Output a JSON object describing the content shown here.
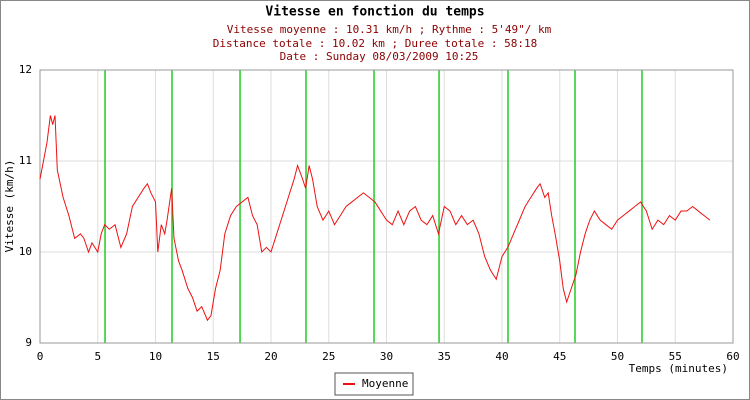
{
  "chart_data": {
    "type": "line",
    "title": "Vitesse en fonction du temps",
    "subtitle": [
      "Vitesse moyenne : 10.31 km/h ; Rythme : 5'49\"/ km",
      "Distance totale : 10.02 km ; Duree totale : 58:18",
      "Date : Sunday 08/03/2009 10:25"
    ],
    "xlabel": "Temps (minutes)",
    "ylabel": "Vitesse (km/h)",
    "xlim": [
      0,
      60
    ],
    "xticks": [
      0,
      5,
      10,
      15,
      20,
      25,
      30,
      35,
      40,
      45,
      50,
      55,
      60
    ],
    "ylim": [
      9,
      12
    ],
    "yticks": [
      9,
      10,
      11,
      12
    ],
    "grid": true,
    "legend": "bottom",
    "km_markers": [
      5.63,
      11.43,
      17.32,
      23.03,
      28.92,
      34.55,
      40.52,
      46.32,
      52.12
    ],
    "km_marker_color": "#22cc22",
    "x": [
      0,
      0.3,
      0.6,
      0.9,
      1.1,
      1.3,
      1.5,
      2,
      2.5,
      3,
      3.5,
      3.8,
      4.2,
      4.5,
      5,
      5.3,
      5.6,
      6,
      6.5,
      7,
      7.5,
      8,
      8.5,
      9,
      9.3,
      9.6,
      10,
      10.2,
      10.5,
      10.8,
      11,
      11.4,
      11.6,
      12,
      12.3,
      12.8,
      13.2,
      13.6,
      14,
      14.5,
      14.8,
      15.2,
      15.6,
      16,
      16.5,
      17,
      17.5,
      18,
      18.4,
      18.8,
      19.2,
      19.6,
      20,
      20.5,
      21,
      21.5,
      22,
      22.3,
      22.6,
      23,
      23.3,
      23.6,
      24,
      24.5,
      25,
      25.5,
      26,
      26.5,
      27,
      27.5,
      28,
      28.5,
      29,
      29.5,
      30,
      30.5,
      31,
      31.5,
      32,
      32.5,
      33,
      33.5,
      34,
      34.5,
      35,
      35.5,
      36,
      36.5,
      37,
      37.5,
      38,
      38.5,
      39,
      39.5,
      40,
      40.5,
      41,
      41.5,
      42,
      42.5,
      43,
      43.3,
      43.7,
      44,
      44.3,
      44.6,
      45,
      45.3,
      45.6,
      46,
      46.4,
      46.8,
      47.2,
      47.6,
      48,
      48.5,
      49,
      49.5,
      50,
      50.5,
      51,
      51.5,
      52,
      52.5,
      53,
      53.5,
      54,
      54.5,
      55,
      55.5,
      56,
      56.5,
      57,
      57.5,
      58
    ],
    "series": [
      {
        "name": "Moyenne",
        "color": "#ee1111",
        "values": [
          10.8,
          11.0,
          11.2,
          11.5,
          11.4,
          11.5,
          10.9,
          10.6,
          10.4,
          10.15,
          10.2,
          10.15,
          10.0,
          10.1,
          10.0,
          10.2,
          10.3,
          10.25,
          10.3,
          10.05,
          10.2,
          10.5,
          10.6,
          10.7,
          10.75,
          10.65,
          10.55,
          10.0,
          10.3,
          10.2,
          10.35,
          10.7,
          10.15,
          9.9,
          9.8,
          9.6,
          9.5,
          9.35,
          9.4,
          9.25,
          9.3,
          9.6,
          9.8,
          10.2,
          10.4,
          10.5,
          10.55,
          10.6,
          10.4,
          10.3,
          10.0,
          10.05,
          10.0,
          10.2,
          10.4,
          10.6,
          10.8,
          10.95,
          10.85,
          10.7,
          10.95,
          10.8,
          10.5,
          10.35,
          10.45,
          10.3,
          10.4,
          10.5,
          10.55,
          10.6,
          10.65,
          10.6,
          10.55,
          10.45,
          10.35,
          10.3,
          10.45,
          10.3,
          10.45,
          10.5,
          10.35,
          10.3,
          10.4,
          10.2,
          10.5,
          10.45,
          10.3,
          10.4,
          10.3,
          10.35,
          10.2,
          9.95,
          9.8,
          9.7,
          9.95,
          10.05,
          10.2,
          10.35,
          10.5,
          10.6,
          10.7,
          10.75,
          10.6,
          10.65,
          10.4,
          10.2,
          9.9,
          9.6,
          9.45,
          9.6,
          9.75,
          10.0,
          10.2,
          10.35,
          10.45,
          10.35,
          10.3,
          10.25,
          10.35,
          10.4,
          10.45,
          10.5,
          10.55,
          10.45,
          10.25,
          10.35,
          10.3,
          10.4,
          10.35,
          10.45,
          10.45,
          10.5,
          10.45,
          10.4,
          10.35
        ]
      }
    ]
  }
}
